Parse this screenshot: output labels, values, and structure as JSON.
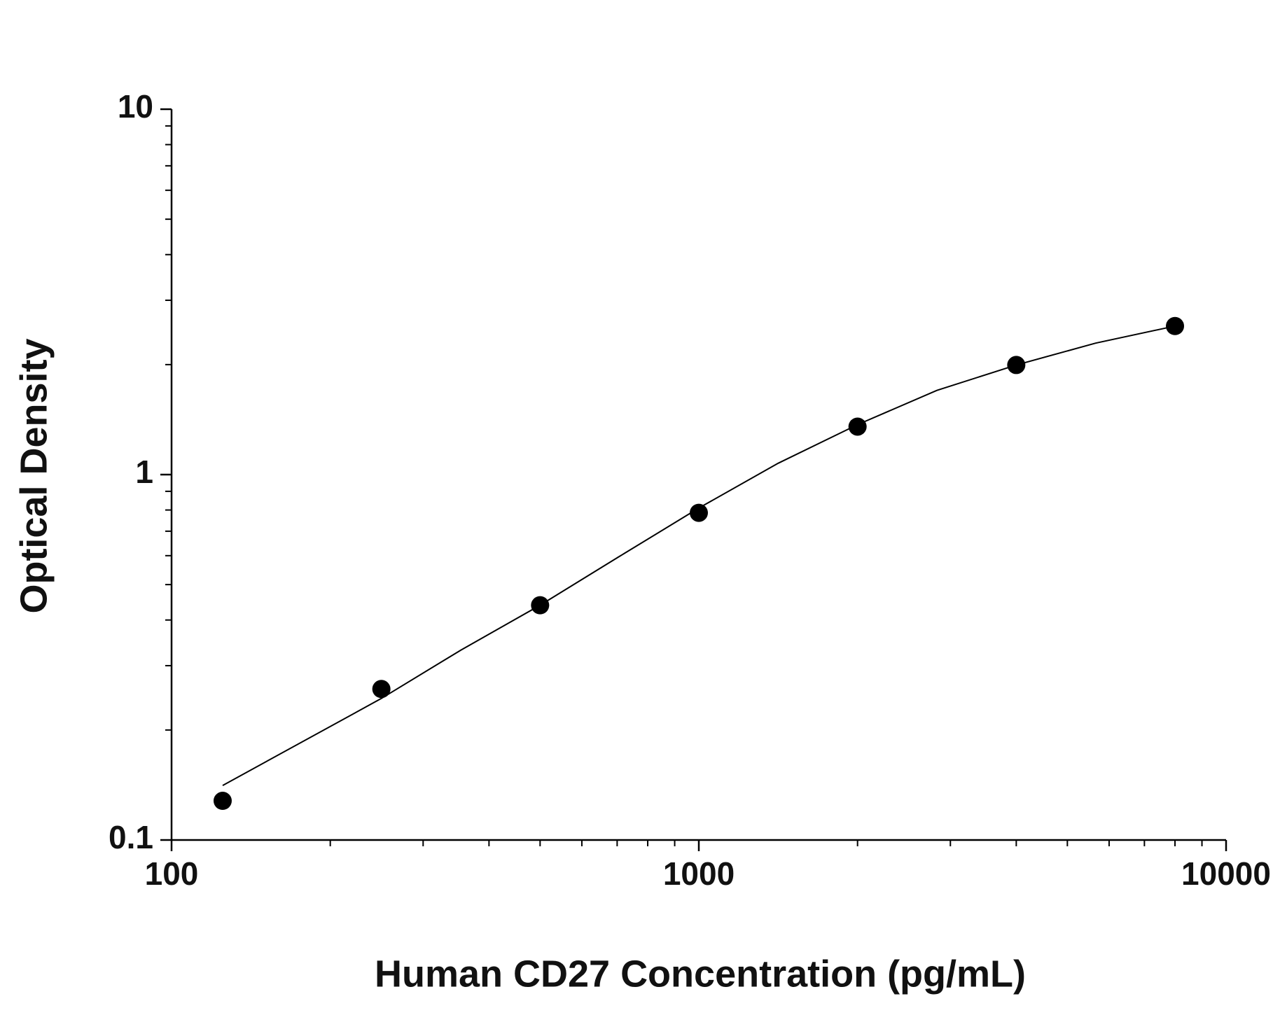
{
  "chart_data": {
    "type": "scatter",
    "x_label": "Human CD27 Concentration (pg/mL)",
    "y_label": "Optical Density",
    "x": [
      125,
      250,
      500,
      1000,
      2000,
      4000,
      8000
    ],
    "values": [
      0.128,
      0.259,
      0.439,
      0.786,
      1.353,
      1.995,
      2.55
    ],
    "color": "#000000",
    "curve": {
      "x": [
        125,
        250,
        354,
        500,
        707,
        1000,
        1414,
        2000,
        2828,
        4000,
        5657,
        8000
      ],
      "values": [
        0.141,
        0.244,
        0.331,
        0.439,
        0.597,
        0.81,
        1.074,
        1.37,
        1.7,
        1.995,
        2.29,
        2.55
      ],
      "color": "#000000"
    },
    "xlog": true,
    "ylog": true,
    "xlim": [
      100,
      10000
    ],
    "ylim": [
      0.1,
      10
    ],
    "xticks": [
      100,
      1000,
      10000
    ],
    "yticks": [
      0.1,
      1,
      10
    ],
    "xminorticks": [
      200,
      300,
      400,
      500,
      600,
      700,
      800,
      900,
      2000,
      3000,
      4000,
      5000,
      6000,
      7000,
      8000,
      9000
    ],
    "yminorticks": [
      0.2,
      0.3,
      0.4,
      0.5,
      0.6,
      0.7,
      0.8,
      0.9,
      2,
      3,
      4,
      5,
      6,
      7,
      8,
      9
    ]
  }
}
